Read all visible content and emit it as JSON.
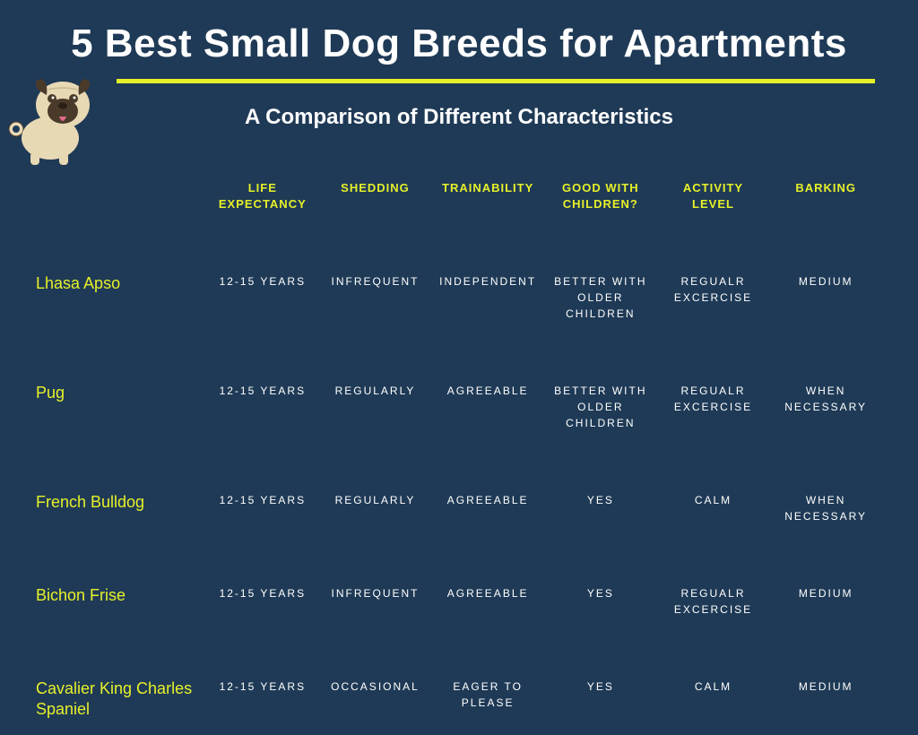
{
  "colors": {
    "background": "#1f3a56",
    "accent": "#e6f02a",
    "text": "#ffffff",
    "pug_body": "#e8d9b5",
    "pug_dark": "#4a3a2a",
    "pug_tongue": "#e06a8a"
  },
  "header": {
    "title": "5 Best Small Dog Breeds for Apartments",
    "subtitle": "A Comparison of Different Characteristics"
  },
  "table": {
    "columns": [
      "",
      "LIFE EXPECTANCY",
      "SHEDDING",
      "TRAINABILITY",
      "GOOD WITH CHILDREN?",
      "ACTIVITY LEVEL",
      "BARKING"
    ],
    "rows": [
      {
        "breed": "Lhasa Apso",
        "cells": [
          "12-15 YEARS",
          "INFREQUENT",
          "INDEPENDENT",
          "BETTER WITH OLDER CHILDREN",
          "REGUALR EXCERCISE",
          "MEDIUM"
        ]
      },
      {
        "breed": "Pug",
        "cells": [
          "12-15 YEARS",
          "REGULARLY",
          "AGREEABLE",
          "BETTER WITH OLDER CHILDREN",
          "REGUALR EXCERCISE",
          "WHEN NECESSARY"
        ]
      },
      {
        "breed": "French Bulldog",
        "cells": [
          "12-15 YEARS",
          "REGULARLY",
          "AGREEABLE",
          "YES",
          "CALM",
          "WHEN NECESSARY"
        ]
      },
      {
        "breed": "Bichon Frise",
        "cells": [
          "12-15 YEARS",
          "INFREQUENT",
          "AGREEABLE",
          "YES",
          "REGUALR EXCERCISE",
          "MEDIUM"
        ]
      },
      {
        "breed": "Cavalier King Charles Spaniel",
        "cells": [
          "12-15 YEARS",
          "OCCASIONAL",
          "EAGER TO PLEASE",
          "YES",
          "CALM",
          "MEDIUM"
        ]
      }
    ]
  },
  "style": {
    "title_fontsize": 44,
    "subtitle_fontsize": 24,
    "header_fontsize": 13,
    "breed_fontsize": 18,
    "cell_fontsize": 12,
    "hr_height": 5
  }
}
